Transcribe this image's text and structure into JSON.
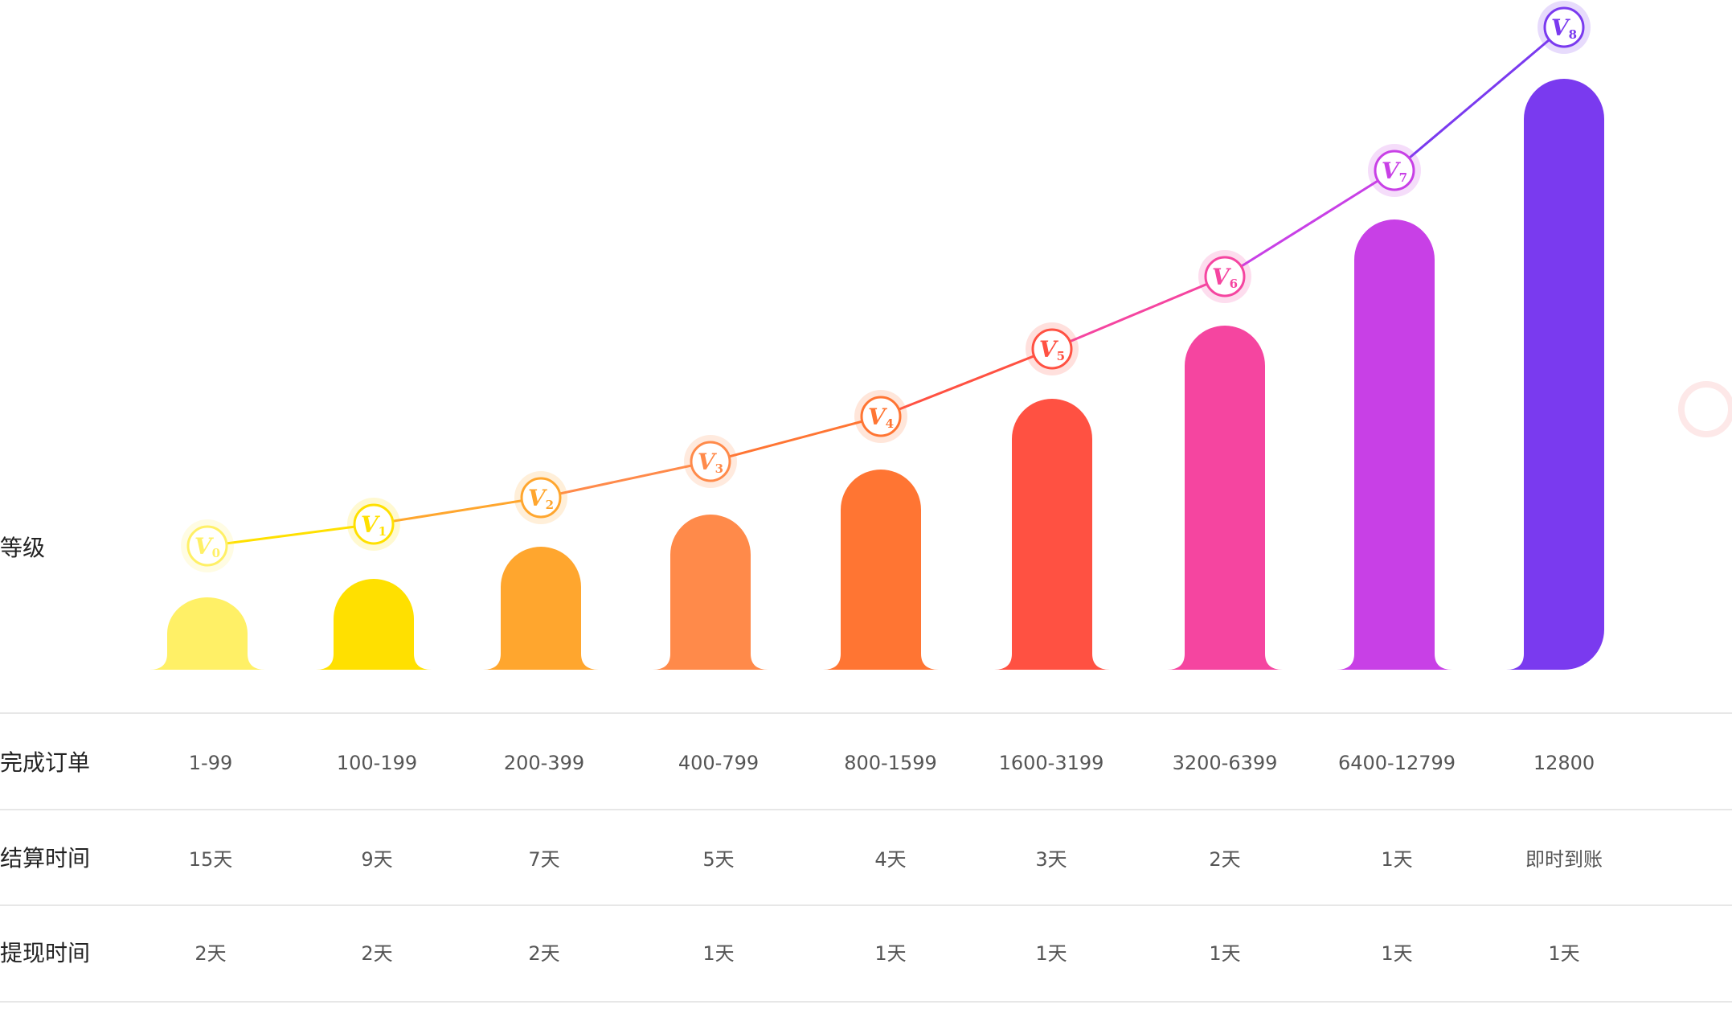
{
  "labels": {
    "level": "等级",
    "orders": "完成订单",
    "settlement": "结算时间",
    "withdrawal": "提现时间"
  },
  "chart_data": {
    "type": "bar",
    "categories": [
      "V0",
      "V1",
      "V2",
      "V3",
      "V4",
      "V5",
      "V6",
      "V7",
      "V8"
    ],
    "values": [
      1,
      2,
      3,
      4,
      5,
      6,
      7,
      8,
      9
    ],
    "colors": [
      "#fff066",
      "#ffe000",
      "#ffa62e",
      "#ff8a4a",
      "#ff7533",
      "#ff5142",
      "#f545a0",
      "#c840e6",
      "#7a3aef"
    ],
    "line": true
  },
  "table": {
    "orders": [
      "1-99",
      "100-199",
      "200-399",
      "400-799",
      "800-1599",
      "1600-3199",
      "3200-6399",
      "6400-12799",
      "12800"
    ],
    "settlement": [
      "15天",
      "9天",
      "7天",
      "5天",
      "4天",
      "3天",
      "2天",
      "1天",
      "即时到账"
    ],
    "withdrawal": [
      "2天",
      "2天",
      "2天",
      "1天",
      "1天",
      "1天",
      "1天",
      "1天",
      "1天"
    ]
  }
}
